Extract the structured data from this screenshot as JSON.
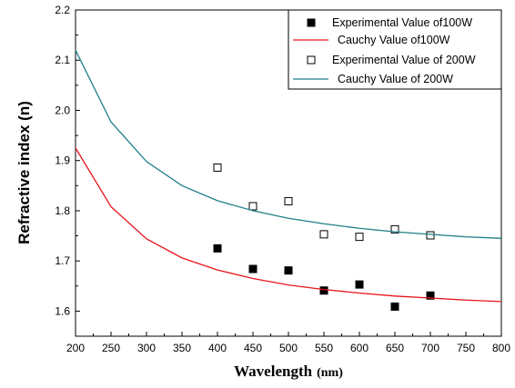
{
  "chart_data": {
    "type": "scatter",
    "xlabel": "Wavelength",
    "xlabel_unit": "(nm)",
    "ylabel": "Refractive index (n)",
    "xlim": [
      200,
      800
    ],
    "ylim": [
      1.55,
      2.2
    ],
    "x_ticks": [
      "200",
      "250",
      "300",
      "350",
      "400",
      "450",
      "500",
      "550",
      "600",
      "650",
      "700",
      "750",
      "800"
    ],
    "y_ticks": [
      "1.6",
      "1.7",
      "1.8",
      "1.9",
      "2.0",
      "2.1",
      "2.2"
    ],
    "grid": false,
    "legend_position": "top-right",
    "series": [
      {
        "name": "Experimental Value of100W",
        "kind": "scatter",
        "marker": "filled-square",
        "color": "#000000",
        "points": [
          [
            400,
            1.725
          ],
          [
            450,
            1.684
          ],
          [
            500,
            1.681
          ],
          [
            550,
            1.641
          ],
          [
            600,
            1.653
          ],
          [
            650,
            1.609
          ],
          [
            700,
            1.631
          ]
        ]
      },
      {
        "name": "Cauchy Value of100W",
        "kind": "line",
        "color": "#e8141b",
        "points": [
          [
            200,
            1.925
          ],
          [
            250,
            1.808
          ],
          [
            300,
            1.744
          ],
          [
            350,
            1.706
          ],
          [
            400,
            1.682
          ],
          [
            450,
            1.665
          ],
          [
            500,
            1.652
          ],
          [
            550,
            1.643
          ],
          [
            600,
            1.636
          ],
          [
            650,
            1.63
          ],
          [
            700,
            1.626
          ],
          [
            750,
            1.622
          ],
          [
            800,
            1.619
          ]
        ]
      },
      {
        "name": "Experimental Value of 200W",
        "kind": "scatter",
        "marker": "hollow-square",
        "color": "#000000",
        "points": [
          [
            400,
            1.886
          ],
          [
            450,
            1.809
          ],
          [
            500,
            1.819
          ],
          [
            550,
            1.753
          ],
          [
            600,
            1.748
          ],
          [
            650,
            1.763
          ],
          [
            700,
            1.751
          ]
        ]
      },
      {
        "name": "Cauchy Value of 200W",
        "kind": "line",
        "color": "#1f7f86",
        "points": [
          [
            200,
            2.12
          ],
          [
            250,
            1.977
          ],
          [
            300,
            1.898
          ],
          [
            350,
            1.85
          ],
          [
            400,
            1.82
          ],
          [
            450,
            1.8
          ],
          [
            500,
            1.785
          ],
          [
            550,
            1.774
          ],
          [
            600,
            1.765
          ],
          [
            650,
            1.758
          ],
          [
            700,
            1.753
          ],
          [
            750,
            1.748
          ],
          [
            800,
            1.745
          ]
        ]
      }
    ]
  }
}
